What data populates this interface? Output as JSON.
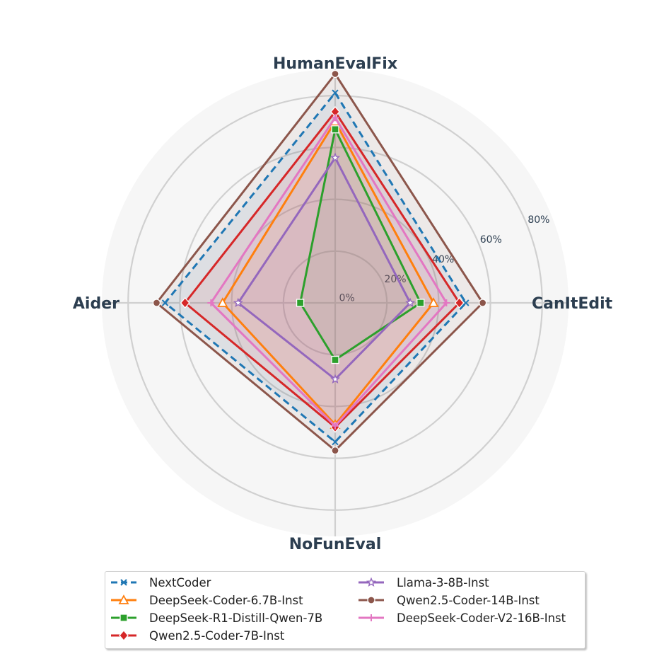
{
  "chart_data": {
    "type": "radar",
    "axes": [
      "HumanEvalFix",
      "CanItEdit",
      "NoFunEval",
      "Aider"
    ],
    "radial_ticks": [
      "0%",
      "20%",
      "40%",
      "60%",
      "80%"
    ],
    "radial_range": [
      0,
      80
    ],
    "grid": true,
    "legend_position": "bottom",
    "series": [
      {
        "name": "NextCoder",
        "values": [
          81.1,
          50.5,
          53.7,
          65.7
        ],
        "color": "#1f77b4",
        "dashed": true,
        "marker": "x"
      },
      {
        "name": "DeepSeek-Coder-6.7B-Inst",
        "values": [
          70.0,
          38.0,
          47.0,
          43.5
        ],
        "color": "#ff7f0e",
        "dashed": false,
        "marker": "triangle"
      },
      {
        "name": "DeepSeek-R1-Distill-Qwen-7B",
        "values": [
          67.0,
          33.0,
          22.0,
          13.5
        ],
        "color": "#2ca02c",
        "dashed": false,
        "marker": "square"
      },
      {
        "name": "Qwen2.5-Coder-7B-Inst",
        "values": [
          73.8,
          48.0,
          48.0,
          58.0
        ],
        "color": "#d62728",
        "dashed": false,
        "marker": "diamond"
      },
      {
        "name": "Llama-3-8B-Inst",
        "values": [
          56.0,
          29.0,
          29.5,
          37.5
        ],
        "color": "#9467bd",
        "dashed": false,
        "marker": "star"
      },
      {
        "name": "Qwen2.5-Coder-14B-Inst",
        "values": [
          88.4,
          57.0,
          57.0,
          69.0
        ],
        "color": "#8c564b",
        "dashed": false,
        "marker": "circle"
      },
      {
        "name": "DeepSeek-Coder-V2-16B-Inst",
        "values": [
          71.5,
          43.0,
          47.5,
          48.0
        ],
        "color": "#e377c2",
        "dashed": false,
        "marker": "plus"
      }
    ]
  }
}
